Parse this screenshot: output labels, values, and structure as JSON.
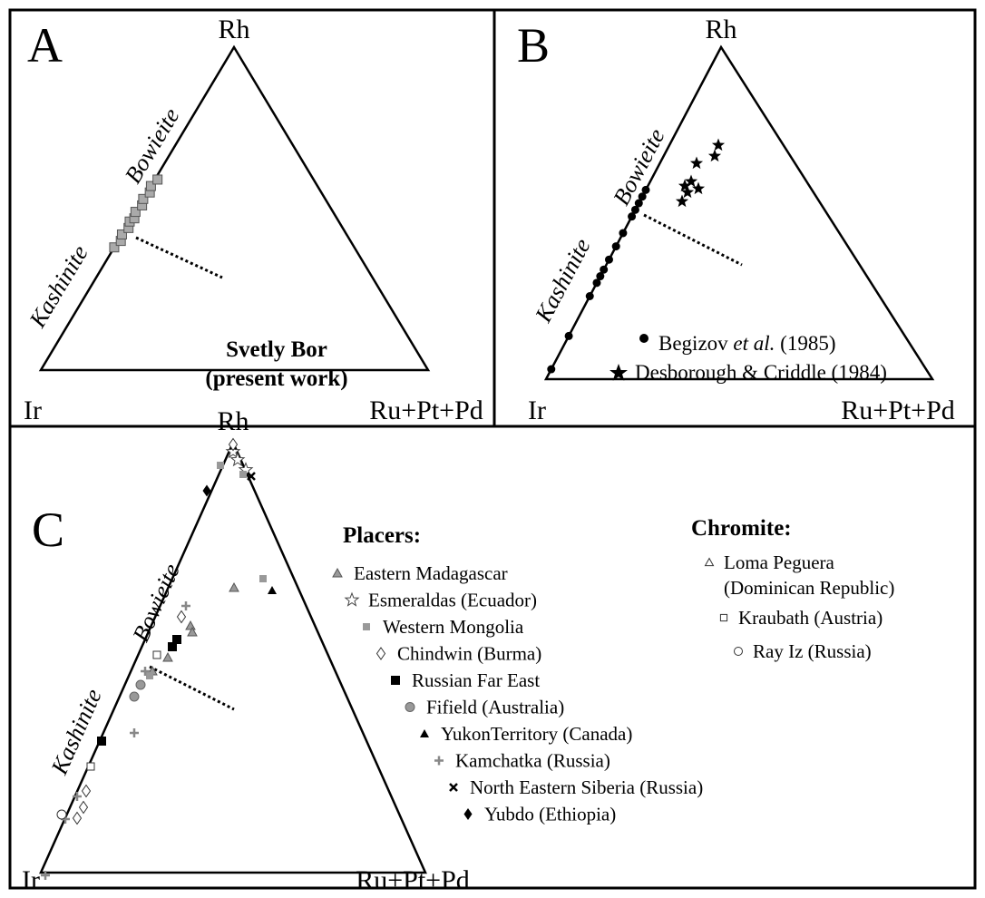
{
  "panels": [
    {
      "label": "A",
      "apex": "Rh",
      "left": "Ir",
      "right": "Ru+Pt+Pd",
      "edge_upper": "Bowieite",
      "edge_lower": "Kashinite",
      "note": [
        "Svetly Bor",
        "(present work)"
      ]
    },
    {
      "label": "B",
      "apex": "Rh",
      "left": "Ir",
      "right": "Ru+Pt+Pd",
      "edge_upper": "Bowieite",
      "edge_lower": "Kashinite",
      "legend": [
        {
          "text": "Begizov",
          "italic": "et al.",
          "suffix": "(1985)"
        },
        {
          "text": "Desborough & Criddle (1984)"
        }
      ]
    },
    {
      "label": "C",
      "apex": "Rh",
      "left": "Ir",
      "right": "Ru+Pt+Pd",
      "edge_upper": "Bowieite",
      "edge_lower": "Kashinite"
    }
  ],
  "legend": {
    "placers_title": "Placers:",
    "placers": [
      "Eastern Madagascar",
      "Esmeraldas (Ecuador)",
      "Western Mongolia",
      "Chindwin (Burma)",
      "Russian Far East",
      "Fifield (Australia)",
      "YukonTerritory (Canada)",
      "Kamchatka (Russia)",
      "North Eastern Siberia (Russia)",
      "Yubdo (Ethiopia)"
    ],
    "chromite_title": "Chromite:",
    "chromite": [
      [
        "Loma Peguera",
        "(Dominican Republic)"
      ],
      [
        "Kraubath (Austria)"
      ],
      [
        "Ray Iz (Russia)"
      ]
    ]
  }
}
